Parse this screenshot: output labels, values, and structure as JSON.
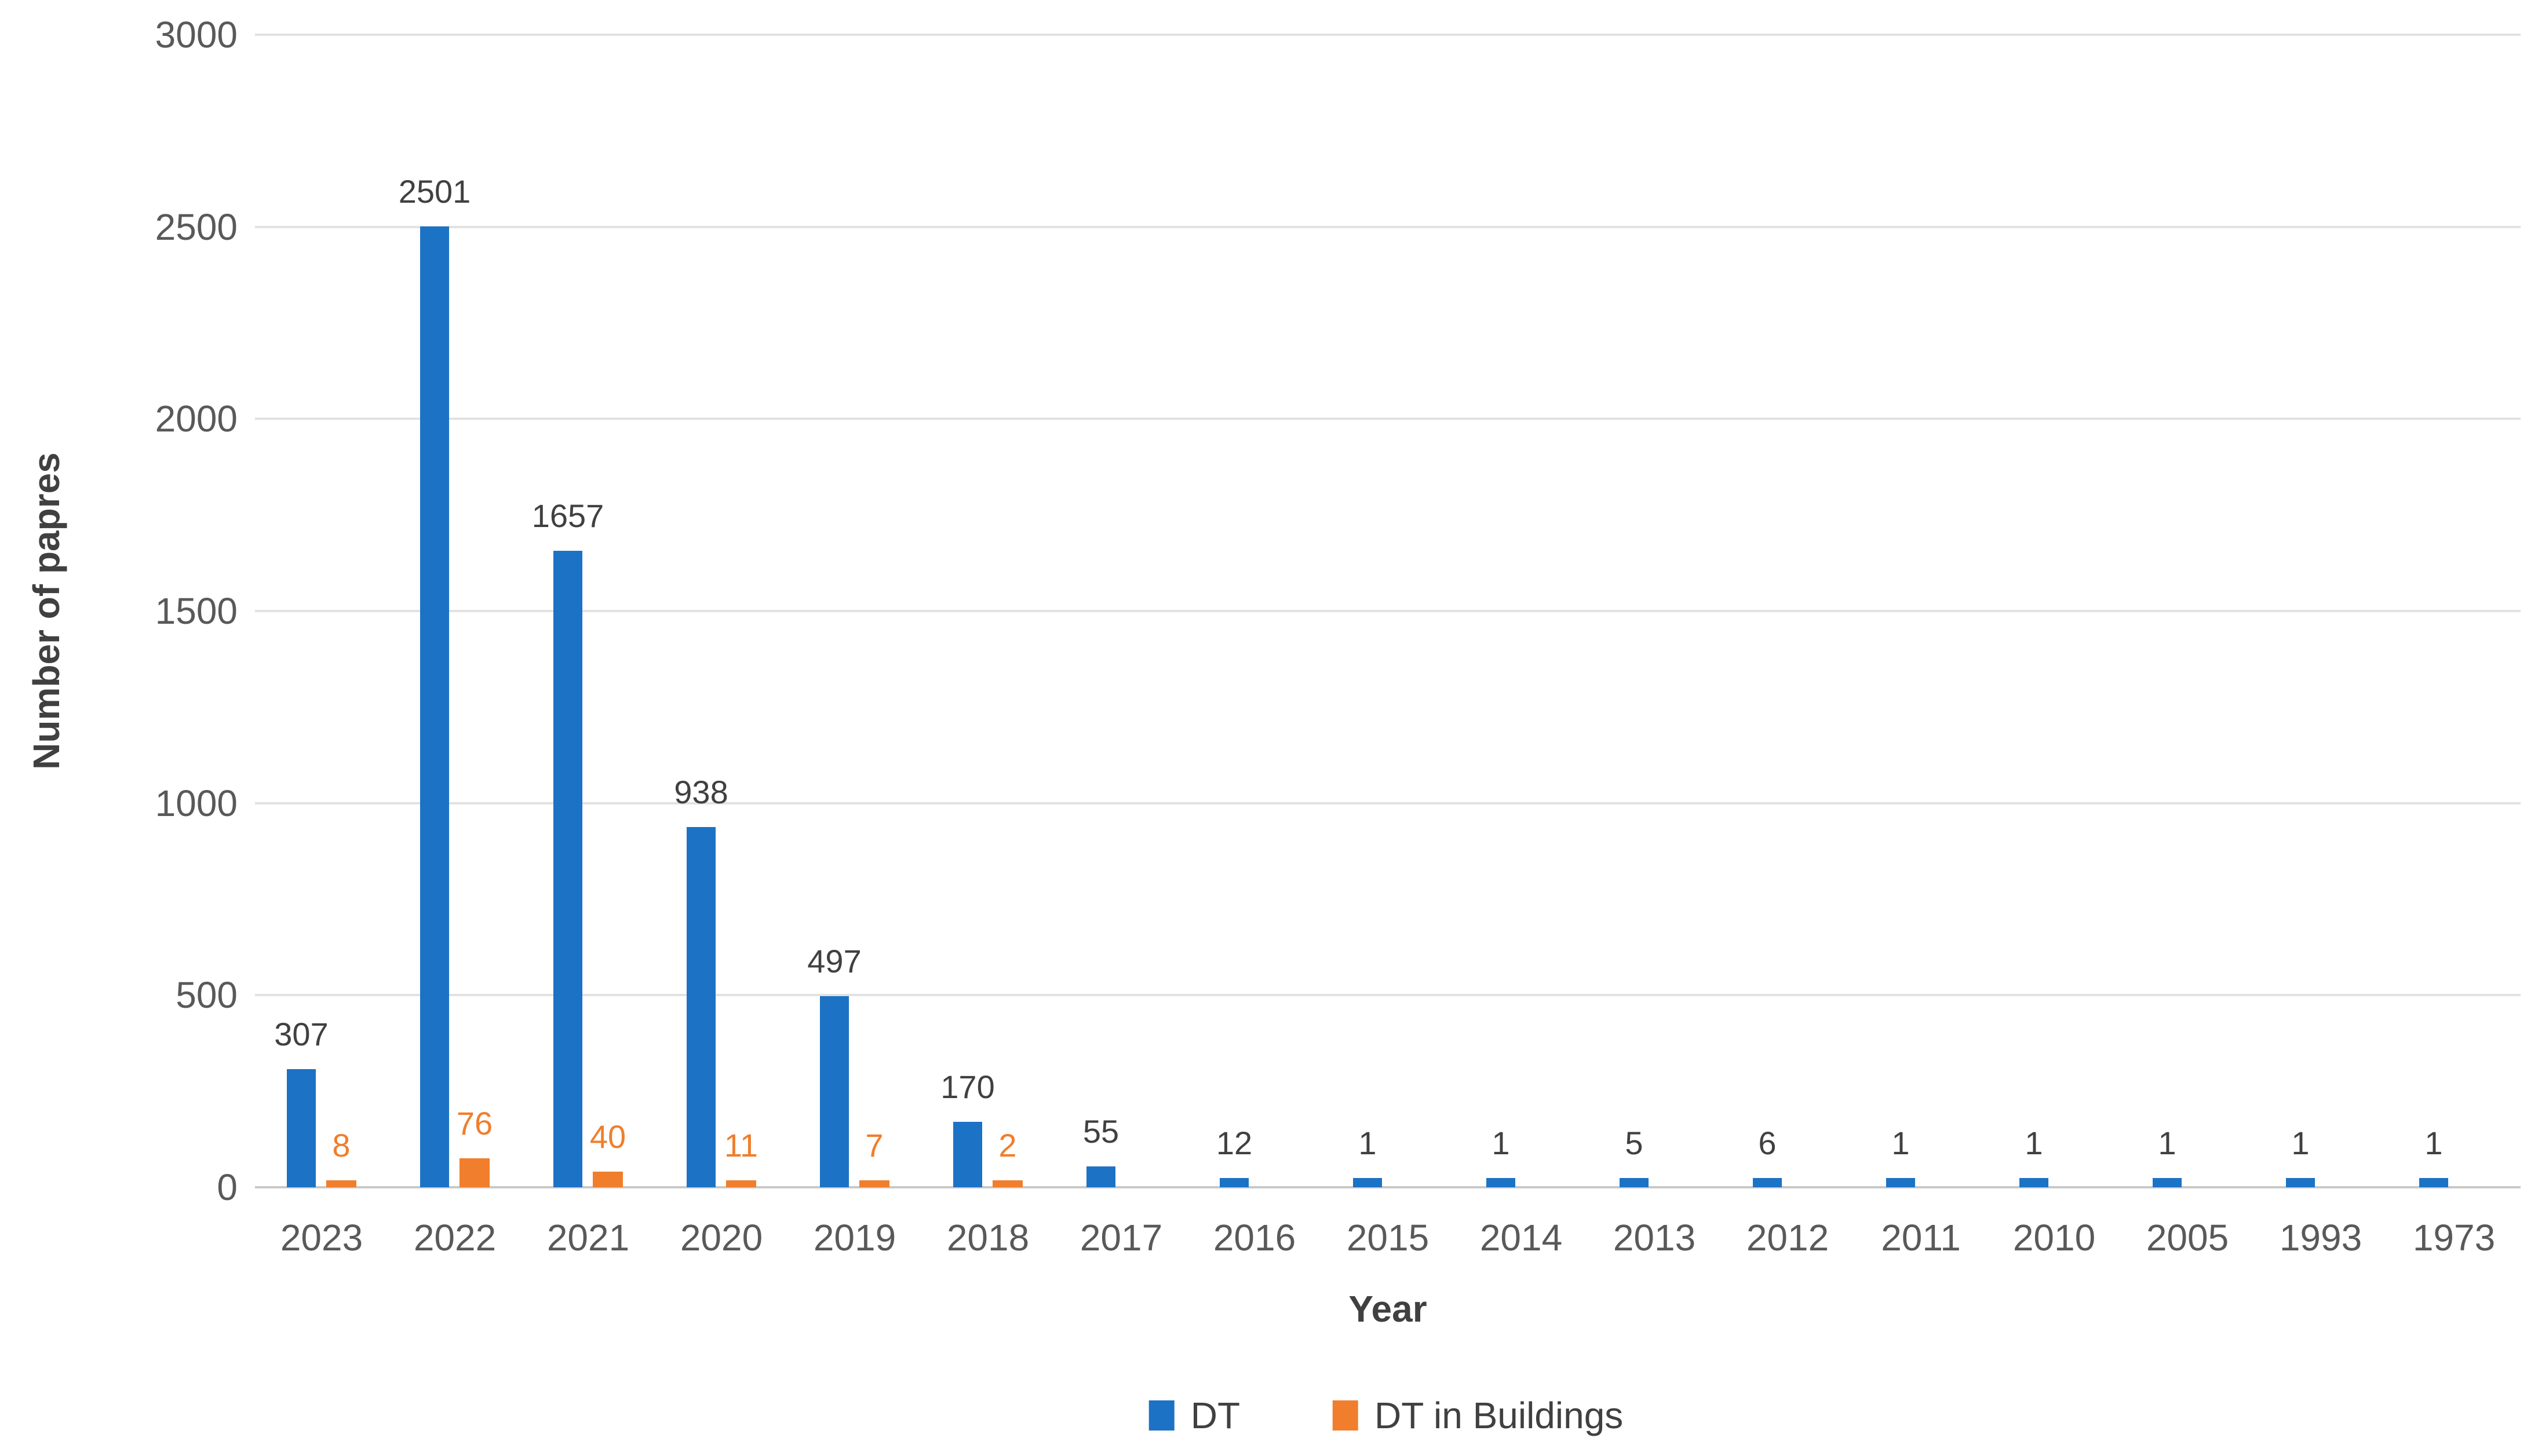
{
  "chart_data": {
    "type": "bar",
    "title": "",
    "xlabel": "Year",
    "ylabel": "Number of papres",
    "ylim": [
      0,
      3000
    ],
    "yticks": [
      0,
      500,
      1000,
      1500,
      2000,
      2500,
      3000
    ],
    "ytick_labels": [
      "0",
      "500",
      "1000",
      "1500",
      "2000",
      "2500",
      "3000"
    ],
    "grid": "horizontal",
    "legend_position": "bottom-center",
    "categories": [
      "2023",
      "2022",
      "2021",
      "2020",
      "2019",
      "2018",
      "2017",
      "2016",
      "2015",
      "2014",
      "2013",
      "2012",
      "2011",
      "2010",
      "2005",
      "1993",
      "1973"
    ],
    "series": [
      {
        "name": "DT",
        "color": "#1c72c4",
        "label_color": "#404040",
        "values": [
          307,
          2501,
          1657,
          938,
          497,
          170,
          55,
          12,
          1,
          1,
          5,
          6,
          1,
          1,
          1,
          1,
          1
        ],
        "data_labels": [
          "307",
          "2501",
          "1657",
          "938",
          "497",
          "170",
          "55",
          "12",
          "1",
          "1",
          "5",
          "6",
          "1",
          "1",
          "1",
          "1",
          "1"
        ]
      },
      {
        "name": "DT in Buildings",
        "color": "#f07e2c",
        "label_color": "#f07e2c",
        "values": [
          8,
          76,
          40,
          11,
          7,
          2,
          null,
          null,
          null,
          null,
          null,
          null,
          null,
          null,
          null,
          null,
          null
        ],
        "data_labels": [
          "8",
          "76",
          "40",
          "11",
          "7",
          "2",
          null,
          null,
          null,
          null,
          null,
          null,
          null,
          null,
          null,
          null,
          null
        ]
      }
    ],
    "colors": {
      "gridline": "#e2e2e2",
      "axis_line": "#c9c9c9",
      "tick_text": "#595959",
      "label_text": "#404040"
    }
  }
}
